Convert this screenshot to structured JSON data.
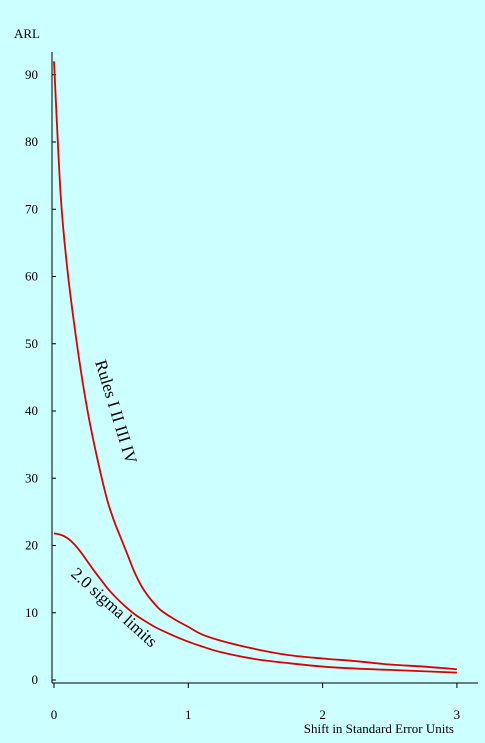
{
  "chart_data": {
    "type": "line",
    "title": "",
    "ylabel": "ARL",
    "xlabel": "Shift in Standard Error Units",
    "xlim": [
      0,
      3
    ],
    "ylim": [
      0,
      95
    ],
    "x_ticks": [
      "0",
      "1",
      "2",
      "3"
    ],
    "y_ticks": [
      "0",
      "10",
      "20",
      "30",
      "40",
      "50",
      "60",
      "70",
      "80",
      "90"
    ],
    "grid": false,
    "colors": {
      "background": "#ccffff",
      "line": "#dd0000",
      "axis": "#000000"
    },
    "series": [
      {
        "name": "Rules I II III IV",
        "x": [
          0,
          0.05,
          0.1,
          0.15,
          0.2,
          0.25,
          0.3,
          0.35,
          0.4,
          0.45,
          0.5,
          0.55,
          0.6,
          0.65,
          0.7,
          0.75,
          0.8,
          0.9,
          1.0,
          1.1,
          1.25,
          1.5,
          1.75,
          2.0,
          2.25,
          2.5,
          2.75,
          3.0
        ],
        "y": [
          92,
          72,
          61,
          53,
          46,
          40,
          35,
          30.5,
          26.5,
          23.5,
          21,
          18.5,
          16,
          14,
          12.5,
          11.3,
          10.3,
          9,
          7.9,
          6.8,
          5.8,
          4.6,
          3.7,
          3.2,
          2.8,
          2.3,
          2,
          1.6
        ]
      },
      {
        "name": "2.0 sigma limits",
        "x": [
          0,
          0.05,
          0.1,
          0.15,
          0.2,
          0.25,
          0.3,
          0.35,
          0.4,
          0.45,
          0.5,
          0.55,
          0.6,
          0.65,
          0.7,
          0.75,
          0.8,
          0.9,
          1.0,
          1.1,
          1.25,
          1.5,
          1.75,
          2.0,
          2.25,
          2.5,
          2.75,
          3.0
        ],
        "y": [
          21.8,
          21.6,
          21.1,
          20.2,
          19,
          17.6,
          16.2,
          14.9,
          13.6,
          12.5,
          11.5,
          10.6,
          9.8,
          9.1,
          8.5,
          7.9,
          7.4,
          6.5,
          5.7,
          5,
          4.1,
          3.1,
          2.5,
          2,
          1.7,
          1.5,
          1.3,
          1.1
        ]
      }
    ]
  }
}
